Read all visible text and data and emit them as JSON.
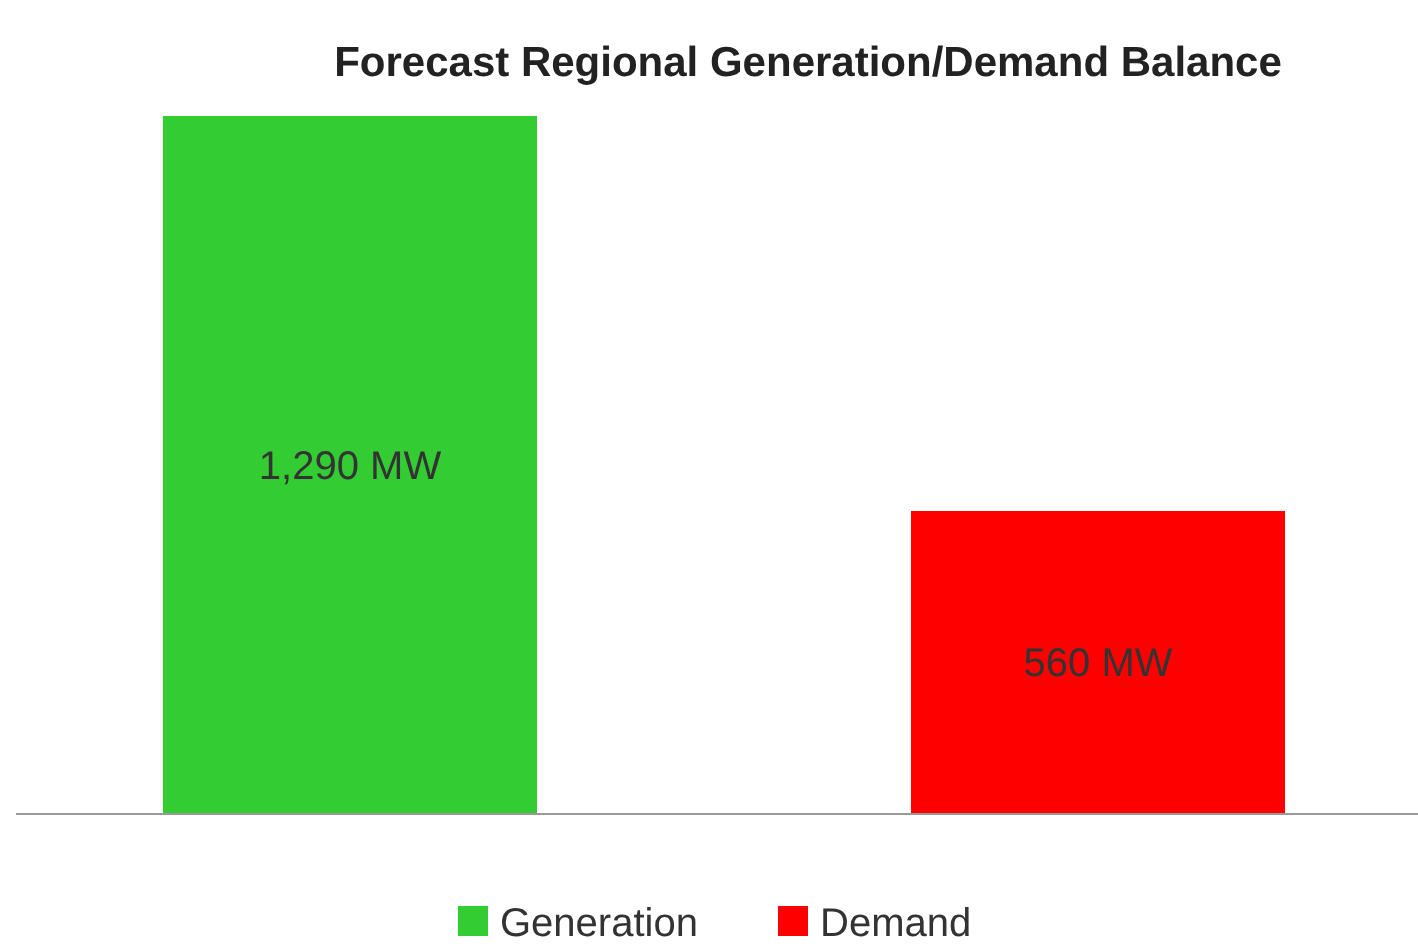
{
  "chart_data": {
    "type": "bar",
    "title": "Forecast Regional Generation/Demand Balance",
    "categories": [
      null,
      null
    ],
    "stacked": true,
    "series": [
      {
        "name": "Generation",
        "color": "#33cc33",
        "values": [
          1290,
          null
        ],
        "value_labels": [
          "1,290 MW",
          null
        ]
      },
      {
        "name": "Demand",
        "color": "#ff0000",
        "values": [
          null,
          560
        ],
        "value_labels": [
          null,
          "560 MW"
        ]
      }
    ],
    "legend": "bottom"
  }
}
